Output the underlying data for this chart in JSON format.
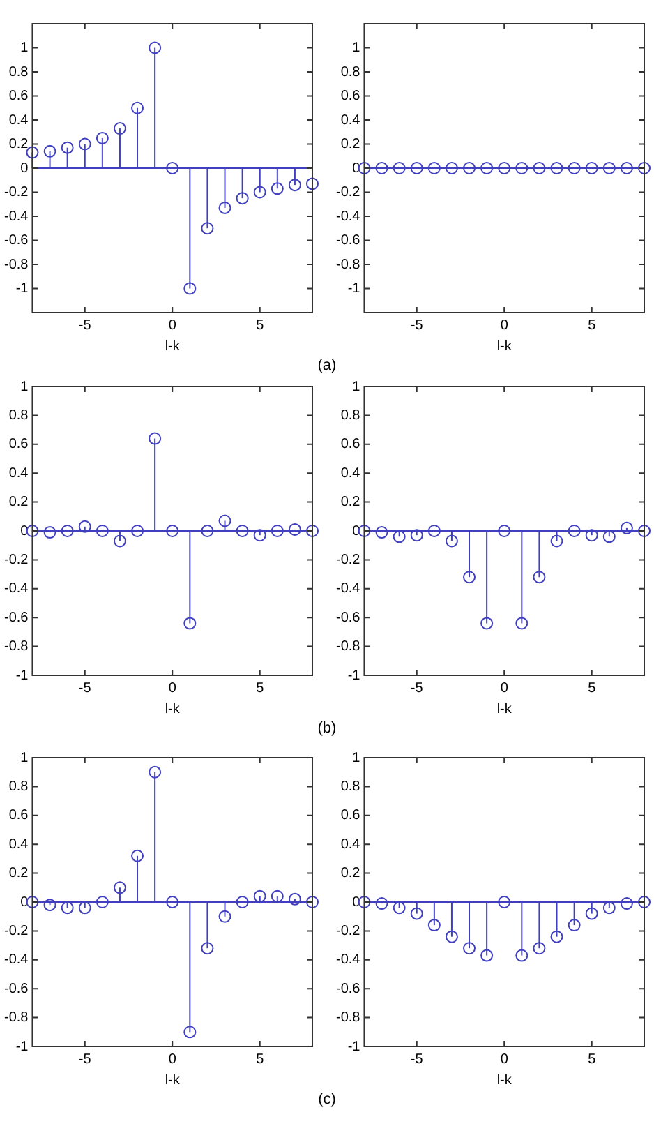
{
  "chart_data": [
    {
      "type": "lollipop",
      "xlabel": "l-k",
      "x": [
        -8,
        -7,
        -6,
        -5,
        -4,
        -3,
        -2,
        -1,
        0,
        1,
        2,
        3,
        4,
        5,
        6,
        7,
        8
      ],
      "values": [
        0.13,
        0.14,
        0.17,
        0.2,
        0.25,
        0.33,
        0.5,
        1,
        0,
        -1,
        -0.5,
        -0.33,
        -0.25,
        -0.2,
        -0.17,
        -0.14,
        -0.13
      ],
      "color": "#3f3fbf",
      "marker": "circle",
      "xlim": [
        -8,
        8
      ],
      "xticks": [
        -5,
        0,
        5
      ],
      "ylim": [
        -1.2,
        1.2
      ],
      "yticks": [
        -1,
        -0.8,
        -0.6,
        -0.4,
        -0.2,
        0,
        0.2,
        0.4,
        0.6,
        0.8,
        1
      ],
      "ref_lines": [
        {
          "axis": "y",
          "value": 0,
          "color": "#3f3fbf"
        }
      ],
      "annotations": [
        "(a)"
      ]
    },
    {
      "type": "lollipop",
      "xlabel": "l-k",
      "x": [
        -8,
        -7,
        -6,
        -5,
        -4,
        -3,
        -2,
        -1,
        0,
        1,
        2,
        3,
        4,
        5,
        6,
        7,
        8
      ],
      "values": [
        0,
        0,
        0,
        0,
        0,
        0,
        0,
        0,
        0,
        0,
        0,
        0,
        0,
        0,
        0,
        0,
        0
      ],
      "color": "#3f3fbf",
      "marker": "circle",
      "xlim": [
        -8,
        8
      ],
      "xticks": [
        -5,
        0,
        5
      ],
      "ylim": [
        -1.2,
        1.2
      ],
      "yticks": [
        -1,
        -0.8,
        -0.6,
        -0.4,
        -0.2,
        0,
        0.2,
        0.4,
        0.6,
        0.8,
        1
      ],
      "ref_lines": [
        {
          "axis": "y",
          "value": 0,
          "color": "#3f3fbf"
        }
      ]
    },
    {
      "type": "lollipop",
      "xlabel": "l-k",
      "x": [
        -8,
        -7,
        -6,
        -5,
        -4,
        -3,
        -2,
        -1,
        0,
        1,
        2,
        3,
        4,
        5,
        6,
        7,
        8
      ],
      "values": [
        0,
        -0.01,
        0,
        0.03,
        0,
        -0.07,
        0,
        0.64,
        0,
        -0.64,
        0,
        0.07,
        0,
        -0.03,
        0,
        0.01,
        0
      ],
      "color": "#3f3fbf",
      "marker": "circle",
      "xlim": [
        -8,
        8
      ],
      "xticks": [
        -5,
        0,
        5
      ],
      "ylim": [
        -1,
        1
      ],
      "yticks": [
        -1,
        -0.8,
        -0.6,
        -0.4,
        -0.2,
        0,
        0.2,
        0.4,
        0.6,
        0.8,
        1
      ],
      "ref_lines": [
        {
          "axis": "y",
          "value": 0,
          "color": "#3f3fbf"
        }
      ],
      "annotations": [
        "(b)"
      ]
    },
    {
      "type": "lollipop",
      "xlabel": "l-k",
      "x": [
        -8,
        -7,
        -6,
        -5,
        -4,
        -3,
        -2,
        -1,
        0,
        1,
        2,
        3,
        4,
        5,
        6,
        7,
        8
      ],
      "values": [
        0,
        -0.01,
        -0.04,
        -0.03,
        0,
        -0.07,
        -0.32,
        -0.64,
        0,
        -0.64,
        -0.32,
        -0.07,
        0,
        -0.03,
        -0.04,
        0.02,
        0
      ],
      "color": "#3f3fbf",
      "marker": "circle",
      "xlim": [
        -8,
        8
      ],
      "xticks": [
        -5,
        0,
        5
      ],
      "ylim": [
        -1,
        1
      ],
      "yticks": [
        -1,
        -0.8,
        -0.6,
        -0.4,
        -0.2,
        0,
        0.2,
        0.4,
        0.6,
        0.8,
        1
      ],
      "ref_lines": [
        {
          "axis": "y",
          "value": 0,
          "color": "#3f3fbf"
        }
      ]
    },
    {
      "type": "lollipop",
      "xlabel": "l-k",
      "x": [
        -8,
        -7,
        -6,
        -5,
        -4,
        -3,
        -2,
        -1,
        0,
        1,
        2,
        3,
        4,
        5,
        6,
        7,
        8
      ],
      "values": [
        0,
        -0.02,
        -0.04,
        -0.04,
        0,
        0.1,
        0.32,
        0.9,
        0,
        -0.9,
        -0.32,
        -0.1,
        0,
        0.04,
        0.04,
        0.02,
        0
      ],
      "color": "#3f3fbf",
      "marker": "circle",
      "xlim": [
        -8,
        8
      ],
      "xticks": [
        -5,
        0,
        5
      ],
      "ylim": [
        -1,
        1
      ],
      "yticks": [
        -1,
        -0.8,
        -0.6,
        -0.4,
        -0.2,
        0,
        0.2,
        0.4,
        0.6,
        0.8,
        1
      ],
      "ref_lines": [
        {
          "axis": "y",
          "value": 0,
          "color": "#3f3fbf"
        }
      ],
      "annotations": [
        "(c)"
      ]
    },
    {
      "type": "lollipop",
      "xlabel": "l-k",
      "x": [
        -8,
        -7,
        -6,
        -5,
        -4,
        -3,
        -2,
        -1,
        0,
        1,
        2,
        3,
        4,
        5,
        6,
        7,
        8
      ],
      "values": [
        0,
        -0.01,
        -0.04,
        -0.08,
        -0.16,
        -0.24,
        -0.32,
        -0.37,
        0,
        -0.37,
        -0.32,
        -0.24,
        -0.16,
        -0.08,
        -0.04,
        -0.01,
        0
      ],
      "color": "#3f3fbf",
      "marker": "circle",
      "xlim": [
        -8,
        8
      ],
      "xticks": [
        -5,
        0,
        5
      ],
      "ylim": [
        -1,
        1
      ],
      "yticks": [
        -1,
        -0.8,
        -0.6,
        -0.4,
        -0.2,
        0,
        0.2,
        0.4,
        0.6,
        0.8,
        1
      ],
      "ref_lines": [
        {
          "axis": "y",
          "value": 0,
          "color": "#3f3fbf"
        }
      ]
    }
  ]
}
